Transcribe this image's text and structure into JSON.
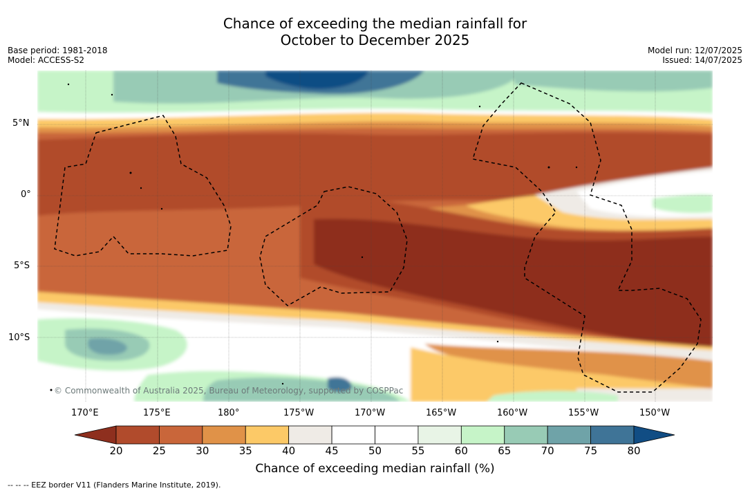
{
  "title_line1": "Chance of exceeding the median rainfall for",
  "title_line2": "October to December 2025",
  "base_period": "Base period: 1981-2018",
  "model": "Model: ACCESS-S2",
  "model_run": "Model run: 12/07/2025",
  "issued": "Issued: 14/07/2025",
  "credit": "© Commonwealth of Australia 2025, Bureau of Meteorology, supported by COSPPac",
  "lat_labels": [
    "5°N",
    "0°",
    "5°S",
    "10°S"
  ],
  "lon_labels": [
    "170°E",
    "175°E",
    "180°",
    "175°W",
    "170°W",
    "165°W",
    "160°W",
    "155°W",
    "150°W"
  ],
  "colorbar": {
    "title": "Chance of exceeding median rainfall (%)",
    "ticks": [
      "20",
      "25",
      "30",
      "35",
      "40",
      "45",
      "50",
      "55",
      "60",
      "65",
      "70",
      "75",
      "80"
    ],
    "colors": [
      "#8e2f1e",
      "#b14b2c",
      "#c9663a",
      "#e09248",
      "#fcc967",
      "#efebe6",
      "#ffffff",
      "#ffffff",
      "#e8f4e6",
      "#c6f4c8",
      "#98cbb5",
      "#6fa3a8",
      "#3f7497",
      "#114d84"
    ]
  },
  "footnote": "-- -- -- EEZ border V11 (Flanders Marine Institute, 2019)."
}
